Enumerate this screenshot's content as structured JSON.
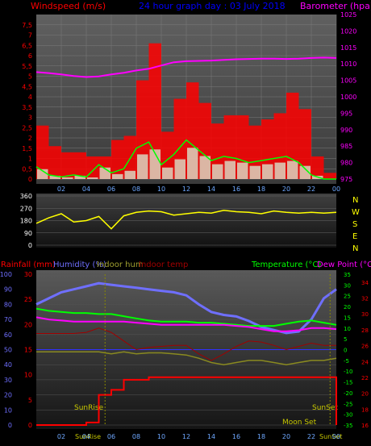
{
  "header": {
    "windspeed_label": "Windspeed (m/s)",
    "title": "24 hour graph day : 03 July 2018",
    "barometer_label": "Barometer (hpa)"
  },
  "colors": {
    "windspeed": "#ff0000",
    "title": "#0000ff",
    "barometer": "#ff00ff",
    "gust": "#ff0000",
    "avg_wind": "#00ff00",
    "wind_dir": "#ffff00",
    "humidity": "#6f6fff",
    "temperature": "#00ff00",
    "dewpoint": "#ff00ff",
    "indoor_temp": "#a00000",
    "indoor_hum": "#8a8a20",
    "rain": "#ff0000",
    "x_ticks": "#6fa8ff",
    "right_temp_ticks": "#00ff00",
    "right_dew_ticks": "#ff0000",
    "compass": "#ffff00"
  },
  "compass": [
    "N",
    "W",
    "S",
    "E",
    "N"
  ],
  "chart_data": [
    {
      "type": "line",
      "title": "24 hour graph day : 03 July 2018",
      "x_ticks": [
        "02",
        "04",
        "06",
        "08",
        "10",
        "12",
        "14",
        "16",
        "18",
        "20",
        "22",
        "00"
      ],
      "left_axis": {
        "label": "Windspeed (m/s)",
        "ylim": [
          0,
          8
        ],
        "ticks": [
          "0",
          "0,5",
          "1",
          "1,5",
          "2",
          "2,5",
          "3",
          "3,5",
          "4",
          "4,5",
          "5",
          "5,5",
          "6",
          "6,5",
          "7",
          "7,5"
        ]
      },
      "right_axis": {
        "label": "Barometer (hpa)",
        "ylim": [
          975,
          1025
        ],
        "ticks": [
          "975",
          "980",
          "985",
          "990",
          "995",
          "1000",
          "1005",
          "1010",
          "1015",
          "1020",
          "1025"
        ]
      },
      "series": [
        {
          "name": "Barometer",
          "axis": "right",
          "x": [
            0,
            1,
            2,
            3,
            4,
            5,
            6,
            7,
            8,
            9,
            10,
            11,
            12,
            13,
            14,
            15,
            16,
            17,
            18,
            19,
            20,
            21,
            22,
            23,
            24
          ],
          "values": [
            1007.5,
            1007.2,
            1006.8,
            1006.3,
            1006.0,
            1006.2,
            1006.8,
            1007.3,
            1008.0,
            1008.5,
            1009.5,
            1010.5,
            1010.8,
            1010.9,
            1011.0,
            1011.2,
            1011.4,
            1011.5,
            1011.6,
            1011.6,
            1011.5,
            1011.6,
            1011.8,
            1011.9,
            1011.8
          ]
        },
        {
          "name": "Gust",
          "axis": "left",
          "x": [
            0,
            1,
            2,
            3,
            4,
            5,
            6,
            7,
            8,
            9,
            10,
            11,
            12,
            13,
            14,
            15,
            16,
            17,
            18,
            19,
            20,
            21,
            22,
            23,
            24
          ],
          "values": [
            2.6,
            1.6,
            1.3,
            1.3,
            1.1,
            1.1,
            1.9,
            2.1,
            4.8,
            6.6,
            2.3,
            3.9,
            4.7,
            3.7,
            2.7,
            3.1,
            3.1,
            2.6,
            2.9,
            3.2,
            4.2,
            3.4,
            1.1,
            0.3,
            0.1
          ]
        },
        {
          "name": "Average wind",
          "axis": "left",
          "x": [
            0,
            1,
            2,
            3,
            4,
            5,
            6,
            7,
            8,
            9,
            10,
            11,
            12,
            13,
            14,
            15,
            16,
            17,
            18,
            19,
            20,
            21,
            22,
            23,
            24
          ],
          "values": [
            0.6,
            0.2,
            0.1,
            0.2,
            0.1,
            0.7,
            0.3,
            0.5,
            1.5,
            1.8,
            0.7,
            1.2,
            1.9,
            1.4,
            0.9,
            1.1,
            1.0,
            0.8,
            0.9,
            1.0,
            1.1,
            0.8,
            0.2,
            0.0,
            0.0
          ]
        }
      ]
    },
    {
      "type": "line",
      "title": "",
      "x_ticks": [
        "02",
        "04",
        "06",
        "08",
        "10",
        "12",
        "14",
        "16",
        "18",
        "20",
        "22",
        "00"
      ],
      "left_axis": {
        "label": "",
        "ylim": [
          0,
          360
        ],
        "ticks": [
          "0",
          "90",
          "180",
          "270",
          "360"
        ]
      },
      "series": [
        {
          "name": "",
          "x": [
            0,
            1,
            2,
            3,
            4,
            5,
            6,
            7,
            8,
            9,
            10,
            11,
            12,
            13,
            14,
            15,
            16,
            17,
            18,
            19,
            20,
            21,
            22,
            23,
            24
          ],
          "values": [
            160,
            200,
            230,
            170,
            180,
            210,
            120,
            215,
            240,
            250,
            245,
            220,
            230,
            240,
            235,
            255,
            245,
            240,
            230,
            250,
            240,
            235,
            240,
            235,
            240
          ]
        }
      ]
    },
    {
      "type": "line",
      "title": "",
      "x_ticks": [
        "02",
        "04",
        "06",
        "08",
        "10",
        "12",
        "14",
        "16",
        "18",
        "20",
        "22",
        "00"
      ],
      "legend": [
        "Rainfall (mm)",
        "Humidity (%)",
        "Indoor hum",
        "Indoor temp",
        "Temperature (°C)",
        "Dew Point (°C)"
      ],
      "axes": {
        "humidity": {
          "label": "Humidity (%)",
          "ylim": [
            0,
            100
          ],
          "ticks": [
            "0",
            "10",
            "20",
            "30",
            "40",
            "50",
            "60",
            "70",
            "80",
            "90",
            "100"
          ]
        },
        "rainfall": {
          "label": "Rainfall (mm)",
          "ylim": [
            0,
            30
          ],
          "ticks": [
            "0",
            "5",
            "10",
            "15",
            "20",
            "25",
            "30"
          ]
        },
        "temperature": {
          "label": "Temperature (°C)",
          "ylim": [
            -35,
            35
          ],
          "ticks": [
            "-35",
            "-30",
            "-25",
            "-20",
            "-15",
            "-10",
            "-5",
            "0",
            "5",
            "10",
            "15",
            "20",
            "25",
            "30",
            "35"
          ]
        },
        "dewpoint": {
          "label": "Dew Point (°C)",
          "ylim": [
            16,
            35
          ],
          "ticks": [
            "16",
            "18",
            "20",
            "22",
            "24",
            "26",
            "28",
            "30",
            "32",
            "34"
          ]
        }
      },
      "annotations": [
        "SunRise",
        "SunSet",
        "Moon Set",
        "SunRise",
        "SunSet"
      ],
      "series": [
        {
          "name": "Humidity (%)",
          "axis": "humidity",
          "x": [
            0,
            1,
            2,
            3,
            4,
            5,
            6,
            7,
            8,
            9,
            10,
            11,
            12,
            13,
            14,
            15,
            16,
            17,
            18,
            19,
            20,
            21,
            22,
            23,
            24
          ],
          "values": [
            80,
            84,
            88,
            90,
            92,
            94,
            93,
            92,
            91,
            90,
            89,
            88,
            86,
            80,
            75,
            73,
            72,
            69,
            65,
            63,
            61,
            62,
            70,
            84,
            90
          ]
        },
        {
          "name": "Temperature (°C)",
          "axis": "temperature",
          "x": [
            0,
            1,
            2,
            3,
            4,
            5,
            6,
            7,
            8,
            9,
            10,
            11,
            12,
            13,
            14,
            15,
            16,
            17,
            18,
            19,
            20,
            21,
            22,
            23,
            24
          ],
          "values": [
            19,
            18,
            17.5,
            17,
            17,
            16.5,
            16.5,
            15.5,
            14.5,
            13.5,
            13,
            13,
            13,
            12.5,
            12.5,
            12,
            11.5,
            11,
            11,
            11,
            12,
            13,
            13.5,
            12.5,
            11.5
          ]
        },
        {
          "name": "Dew Point (°C)",
          "axis": "temperature",
          "x": [
            0,
            1,
            2,
            3,
            4,
            5,
            6,
            7,
            8,
            9,
            10,
            11,
            12,
            13,
            14,
            15,
            16,
            17,
            18,
            19,
            20,
            21,
            22,
            23,
            24
          ],
          "values": [
            15,
            14,
            13.5,
            13,
            13,
            13,
            13,
            13,
            12.5,
            12,
            11.5,
            11.5,
            11.5,
            11.5,
            11.5,
            11.5,
            11,
            10.5,
            9.5,
            8.5,
            8.5,
            9,
            10,
            10,
            9.5
          ]
        },
        {
          "name": "Indoor temp",
          "axis": "temperature",
          "x": [
            0,
            1,
            2,
            3,
            4,
            5,
            6,
            7,
            8,
            9,
            10,
            11,
            12,
            13,
            14,
            15,
            16,
            17,
            18,
            19,
            20,
            21,
            22,
            23,
            24
          ],
          "values": [
            7.5,
            7.5,
            7.5,
            7.5,
            8,
            10,
            8,
            4,
            0,
            1,
            1.5,
            2,
            2,
            -2,
            -5,
            -2,
            1.5,
            4,
            3.5,
            2,
            0,
            1.5,
            3,
            2,
            2
          ]
        },
        {
          "name": "Indoor hum",
          "axis": "temperature",
          "x": [
            0,
            1,
            2,
            3,
            4,
            5,
            6,
            7,
            8,
            9,
            10,
            11,
            12,
            13,
            14,
            15,
            16,
            17,
            18,
            19,
            20,
            21,
            22,
            23,
            24
          ],
          "values": [
            -1,
            -1,
            -1,
            -1,
            -1,
            -1,
            -2,
            -1,
            -2,
            -1.5,
            -1.5,
            -2,
            -2.5,
            -4,
            -6,
            -7,
            -6,
            -5,
            -5,
            -6,
            -7,
            -6,
            -5,
            -5,
            -4
          ]
        },
        {
          "name": "Rainfall (mm)",
          "axis": "rainfall",
          "x": [
            0,
            1,
            2,
            3,
            4,
            5,
            6,
            7,
            8,
            9,
            10,
            11,
            12,
            13,
            14,
            15,
            16,
            17,
            18,
            19,
            20,
            21,
            22,
            23,
            24
          ],
          "values": [
            0,
            0,
            0,
            0,
            0.5,
            6,
            7,
            9,
            9,
            9.5,
            9.5,
            9.5,
            9.5,
            9.5,
            9.5,
            9.5,
            9.5,
            9.5,
            9.5,
            9.5,
            9.5,
            9.5,
            9.5,
            9.5,
            0
          ]
        }
      ]
    }
  ]
}
